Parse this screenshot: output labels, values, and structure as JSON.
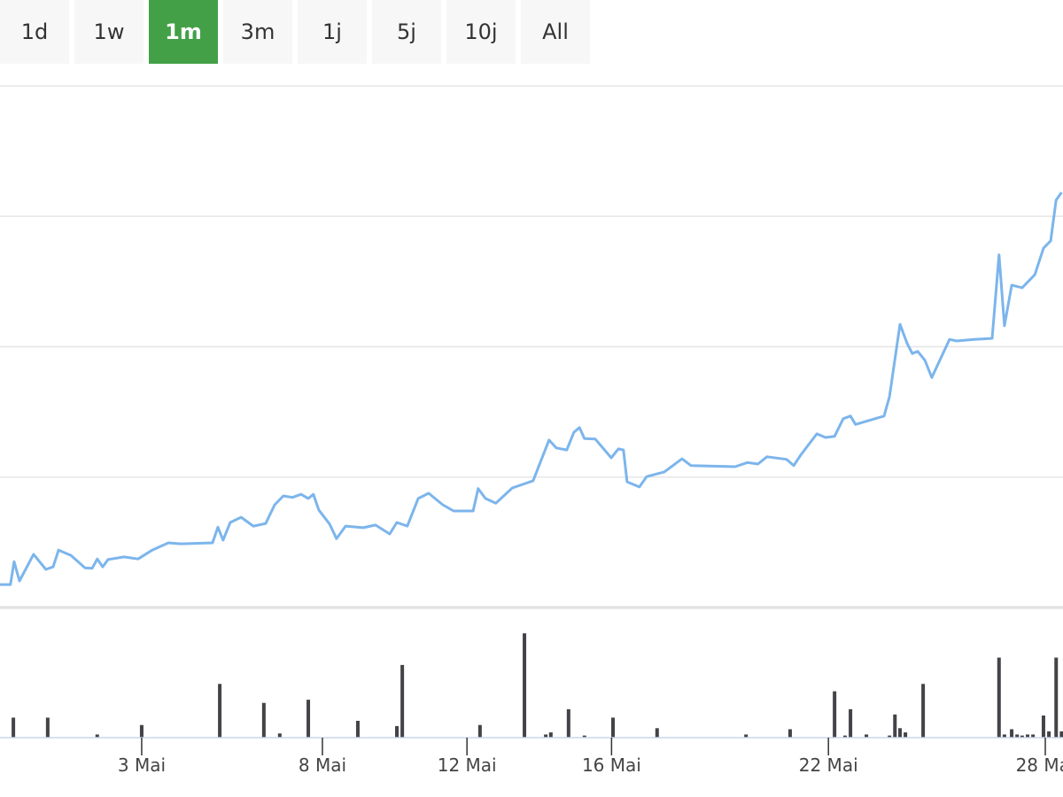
{
  "range_buttons": [
    "1d",
    "1w",
    "1m",
    "3m",
    "1j",
    "5j",
    "10j",
    "All"
  ],
  "selected_button": 2,
  "chart_data": [
    {
      "type": "line",
      "color": "#7cb5ec",
      "grid": true,
      "xlim": [
        -0.92,
        28.49
      ],
      "ylim": [
        0,
        100
      ],
      "yticks": [
        0,
        25,
        50,
        75,
        100
      ],
      "x": [
        -0.92,
        -0.63,
        -0.53,
        -0.38,
        0.01,
        0.35,
        0.55,
        0.7,
        1.04,
        1.43,
        1.63,
        1.77,
        1.92,
        2.07,
        2.51,
        2.9,
        3.29,
        3.74,
        4.08,
        4.96,
        5.11,
        5.25,
        5.45,
        5.75,
        6.09,
        6.43,
        6.68,
        6.92,
        7.17,
        7.41,
        7.61,
        7.75,
        7.9,
        8.2,
        8.39,
        8.64,
        9.13,
        9.47,
        9.86,
        10.06,
        10.35,
        10.65,
        10.94,
        11.33,
        11.63,
        12.17,
        12.31,
        12.51,
        12.8,
        13.25,
        13.54,
        13.83,
        14.27,
        14.47,
        14.76,
        14.96,
        15.11,
        15.25,
        15.55,
        15.99,
        16.19,
        16.33,
        16.43,
        16.77,
        16.97,
        17.46,
        17.95,
        18.2,
        19.42,
        19.76,
        20.05,
        20.3,
        20.84,
        21.04,
        21.23,
        21.68,
        21.92,
        22.17,
        22.41,
        22.61,
        22.75,
        23.34,
        23.54,
        23.69,
        23.98,
        24.18,
        24.32,
        24.47,
        24.67,
        24.86,
        25.35,
        25.55,
        26.04,
        26.53,
        26.72,
        26.87,
        27.07,
        27.36,
        27.71,
        27.95,
        28.15,
        28.3,
        28.45
      ],
      "values": [
        4.4,
        4.4,
        8.8,
        5.1,
        10.2,
        7.3,
        7.8,
        11.0,
        10.0,
        7.6,
        7.5,
        9.3,
        7.8,
        9.2,
        9.7,
        9.3,
        11.0,
        12.4,
        12.2,
        12.4,
        15.4,
        12.9,
        16.3,
        17.3,
        15.6,
        16.1,
        19.7,
        21.4,
        21.1,
        21.7,
        20.9,
        21.7,
        18.7,
        16.0,
        13.2,
        15.6,
        15.3,
        15.8,
        14.1,
        16.3,
        15.6,
        20.9,
        21.9,
        19.7,
        18.5,
        18.5,
        22.8,
        20.9,
        20.0,
        22.9,
        23.6,
        24.3,
        32.1,
        30.6,
        30.2,
        33.6,
        34.5,
        32.4,
        32.3,
        28.7,
        30.4,
        30.2,
        24.1,
        23.1,
        25.1,
        26.0,
        28.5,
        27.2,
        27.0,
        27.8,
        27.5,
        28.9,
        28.4,
        27.2,
        29.2,
        33.3,
        32.6,
        32.8,
        36.2,
        36.7,
        35.1,
        36.3,
        36.7,
        40.4,
        54.3,
        50.6,
        48.7,
        49.1,
        47.4,
        44.1,
        51.4,
        51.1,
        51.4,
        51.6,
        67.6,
        54.0,
        61.8,
        61.3,
        63.8,
        68.9,
        70.3,
        78.1,
        79.6
      ]
    },
    {
      "type": "bar",
      "color": "#434348",
      "xlim": [
        -0.92,
        28.49
      ],
      "ylim": [
        0,
        100
      ],
      "xticks": [
        {
          "value": 3,
          "label": "3 Mai"
        },
        {
          "value": 8,
          "label": "8 Mai"
        },
        {
          "value": 12,
          "label": "12 Mai"
        },
        {
          "value": 16,
          "label": "16 Mai"
        },
        {
          "value": 22,
          "label": "22 Mai"
        },
        {
          "value": 28,
          "label": "28 Mai"
        }
      ],
      "x": [
        -0.55,
        0.4,
        1.77,
        3.0,
        5.16,
        6.38,
        6.82,
        7.61,
        8.98,
        10.06,
        10.21,
        12.36,
        13.59,
        14.18,
        14.32,
        14.81,
        15.25,
        16.04,
        17.26,
        19.72,
        20.94,
        22.17,
        22.46,
        22.61,
        23.05,
        23.69,
        23.84,
        23.98,
        24.13,
        24.62,
        26.72,
        26.87,
        27.07,
        27.22,
        27.36,
        27.51,
        27.66,
        27.95,
        28.1,
        28.3,
        28.45
      ],
      "values": [
        19,
        19,
        3,
        12,
        51,
        33,
        4,
        36,
        16,
        11,
        69,
        12,
        99,
        3,
        5,
        27,
        2,
        19,
        9,
        3,
        8,
        44,
        2,
        27,
        3,
        2,
        22,
        9,
        5,
        51,
        76,
        3,
        8,
        3,
        2,
        3,
        3,
        21,
        6,
        76,
        6
      ]
    }
  ]
}
